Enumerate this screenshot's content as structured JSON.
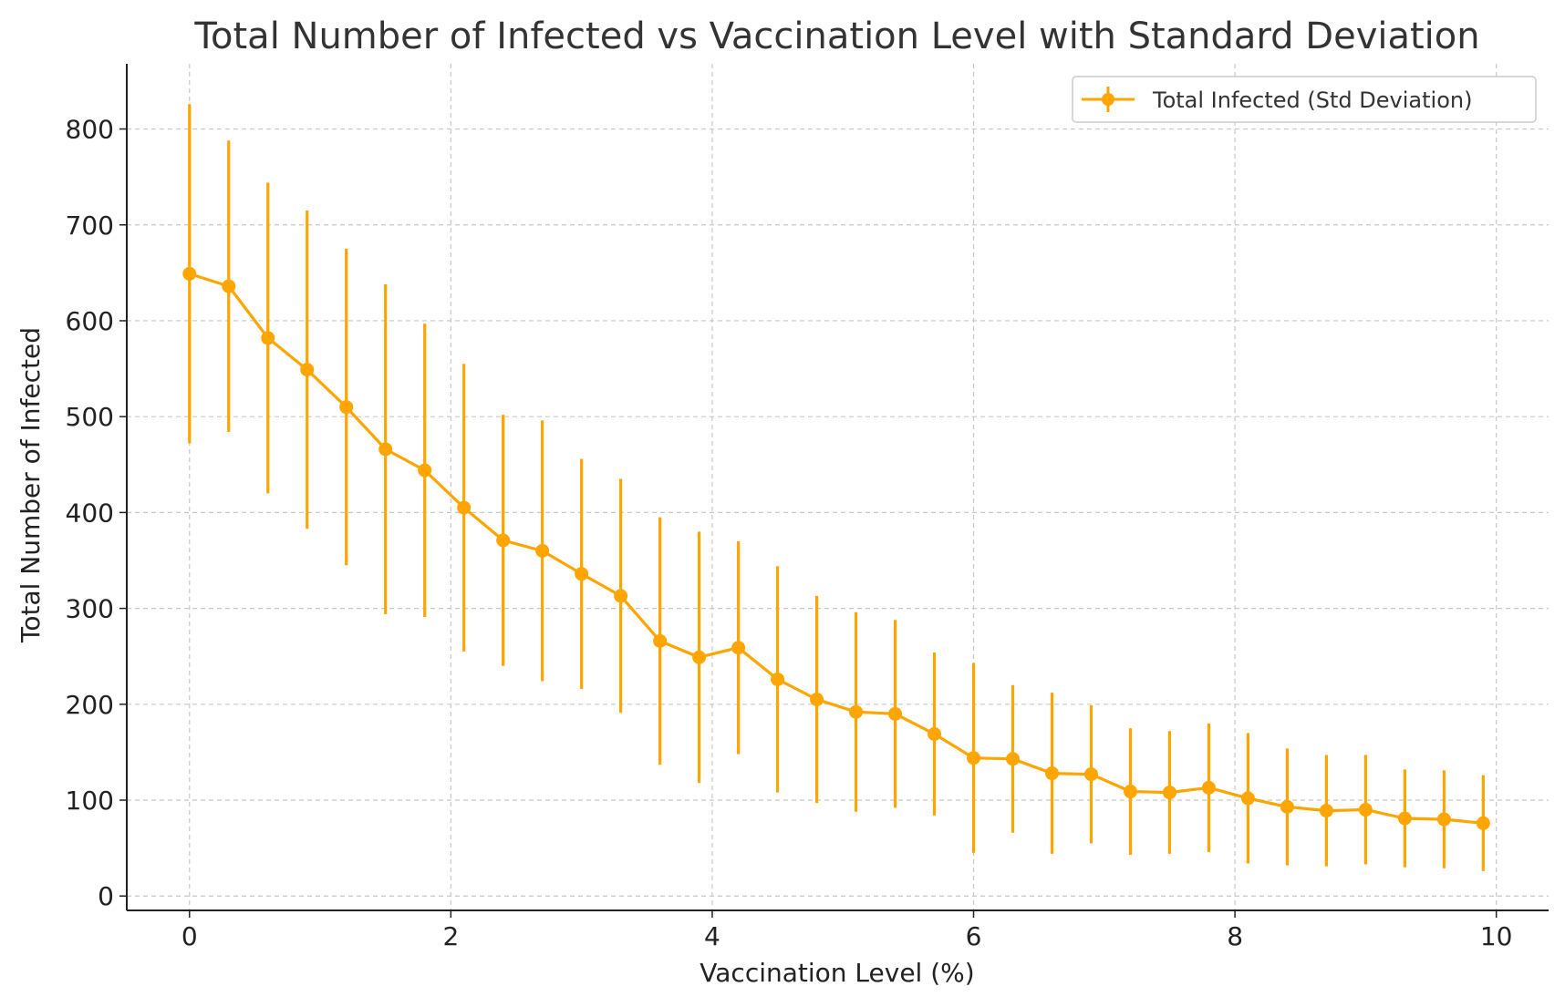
{
  "chart_data": {
    "type": "line",
    "title": "Total Number of Infected vs Vaccination Level with Standard Deviation",
    "xlabel": "Vaccination Level (%)",
    "ylabel": "Total Number of Infected",
    "xlim": [
      -0.48,
      10.4
    ],
    "ylim": [
      -15,
      868
    ],
    "x_ticks": [
      0,
      2,
      4,
      6,
      8,
      10
    ],
    "y_ticks": [
      0,
      100,
      200,
      300,
      400,
      500,
      600,
      700,
      800
    ],
    "grid": true,
    "legend_position": "top-right",
    "series": [
      {
        "name": "Total Infected (Std Deviation)",
        "color": "#FFA500",
        "marker": "circle",
        "x": [
          0,
          0.3,
          0.6,
          0.9,
          1.2,
          1.5,
          1.8,
          2.1,
          2.4,
          2.7,
          3.0,
          3.3,
          3.6,
          3.9,
          4.2,
          4.5,
          4.8,
          5.1,
          5.4,
          5.7,
          6.0,
          6.3,
          6.6,
          6.9,
          7.2,
          7.5,
          7.8,
          8.1,
          8.4,
          8.7,
          9.0,
          9.3,
          9.6,
          9.9
        ],
        "y": [
          649,
          636,
          582,
          549,
          510,
          466,
          444,
          405,
          371,
          360,
          336,
          313,
          266,
          249,
          259,
          226,
          205,
          192,
          190,
          169,
          144,
          143,
          128,
          127,
          109,
          108,
          113,
          102,
          93,
          89,
          90,
          81,
          80,
          76
        ],
        "std": [
          177,
          152,
          162,
          166,
          165,
          172,
          153,
          150,
          131,
          136,
          120,
          122,
          129,
          131,
          111,
          118,
          108,
          104,
          98,
          85,
          99,
          77,
          84,
          72,
          66,
          64,
          67,
          68,
          61,
          58,
          57,
          51,
          51,
          50
        ]
      }
    ]
  }
}
